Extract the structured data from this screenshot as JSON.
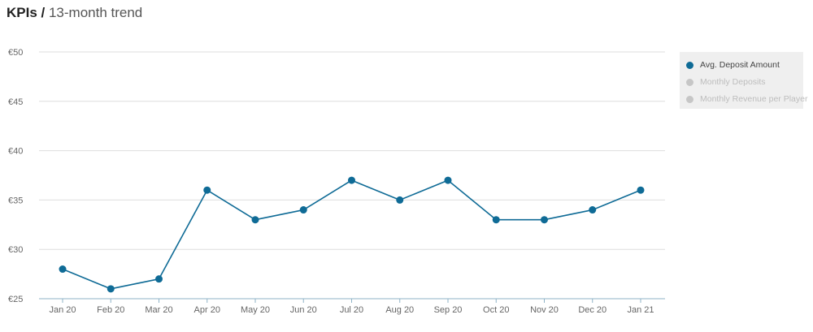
{
  "header": {
    "title_bold": "KPIs",
    "separator": " / ",
    "title_rest": "13-month trend"
  },
  "colors": {
    "series": "#0f6b96",
    "inactive": "#c6c6c6",
    "grid": "#dedede",
    "axis": "#8fb3c7",
    "text": "#666666"
  },
  "legend": {
    "items": [
      {
        "label": "Avg. Deposit Amount",
        "active": true
      },
      {
        "label": "Monthly Deposits",
        "active": false
      },
      {
        "label": "Monthly Revenue per Player",
        "active": false
      }
    ]
  },
  "chart_data": {
    "type": "line",
    "categories": [
      "Jan 20",
      "Feb 20",
      "Mar 20",
      "Apr 20",
      "May 20",
      "Jun 20",
      "Jul 20",
      "Aug 20",
      "Sep 20",
      "Oct 20",
      "Nov 20",
      "Dec 20",
      "Jan 21"
    ],
    "series": [
      {
        "name": "Avg. Deposit Amount",
        "values": [
          28,
          26,
          27,
          36,
          33,
          34,
          37,
          35,
          37,
          33,
          33,
          34,
          36
        ]
      }
    ],
    "yticks": [
      "€25",
      "€30",
      "€35",
      "€40",
      "€45",
      "€50"
    ],
    "ylim": [
      25,
      50
    ],
    "grid": true,
    "legend_position": "right"
  }
}
